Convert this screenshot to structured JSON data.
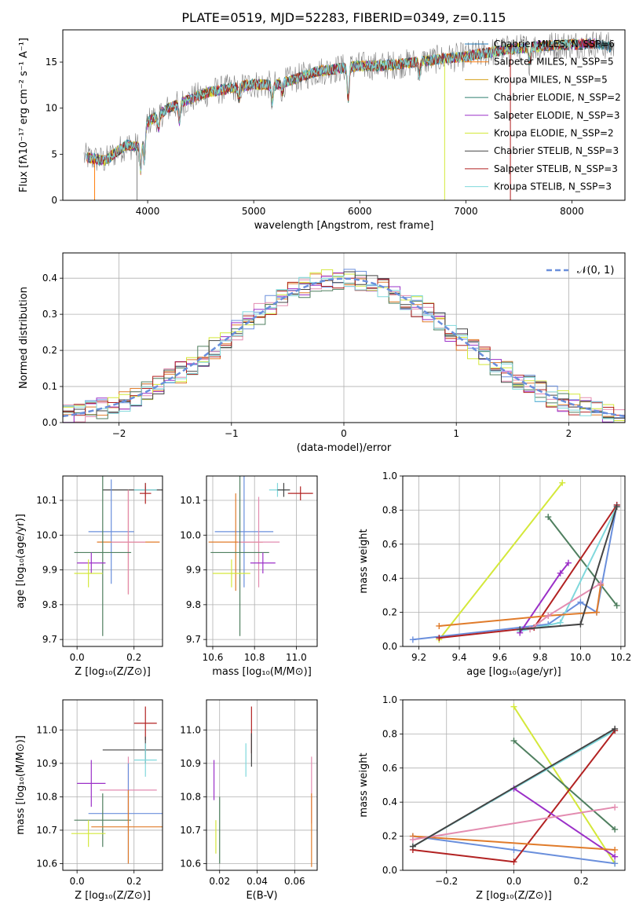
{
  "figure_title": "PLATE=0519, MJD=52283, FIBERID=0349, z=0.115",
  "colors": {
    "chabrier_miles": "#1f77b4",
    "salpeter_miles": "#ff7f0e",
    "kroupa_miles": "#d4a017",
    "chabrier_elodie": "#2f7f6f",
    "salpeter_elodie": "#9b30c8",
    "kroupa_elodie": "#d4e83a",
    "chabrier_stelib": "#444444",
    "salpeter_stelib": "#b22222",
    "kroupa_stelib": "#7fd8dc",
    "data": "#808080",
    "normal": "#6a8fdc",
    "s_lightblue": "#6a8fdc",
    "s_orange": "#e07b2a",
    "s_pink": "#e38cb0",
    "s_purple": "#9b30c8",
    "s_yellow": "#d4e83a",
    "s_green": "#4f7f5f",
    "s_dark": "#444444",
    "s_red": "#b22222",
    "s_cyan": "#7fd8dc"
  },
  "chart_data": [
    {
      "id": "spectrum",
      "type": "line",
      "title": "PLATE=0519, MJD=52283, FIBERID=0349, z=0.115",
      "xlabel": "wavelength [Angstrom, rest frame]",
      "ylabel": "Flux [fλ10⁻¹⁷ erg cm⁻² s⁻¹ A⁻¹]",
      "xlim": [
        3200,
        8500
      ],
      "ylim": [
        0,
        18.5
      ],
      "xticks": [
        4000,
        5000,
        6000,
        7000,
        8000
      ],
      "yticks": [
        0,
        5,
        10,
        15
      ],
      "grid": false,
      "legend_position": "top-right",
      "legend": [
        {
          "label": "Chabrier MILES, N_SSP=6",
          "color_key": "chabrier_miles"
        },
        {
          "label": "Salpeter MILES, N_SSP=5",
          "color_key": "salpeter_miles"
        },
        {
          "label": "Kroupa MILES, N_SSP=5",
          "color_key": "kroupa_miles"
        },
        {
          "label": "Chabrier ELODIE, N_SSP=2",
          "color_key": "chabrier_elodie"
        },
        {
          "label": "Salpeter ELODIE, N_SSP=3",
          "color_key": "salpeter_elodie"
        },
        {
          "label": "Kroupa ELODIE, N_SSP=2",
          "color_key": "kroupa_elodie"
        },
        {
          "label": "Chabrier STELIB, N_SSP=3",
          "color_key": "chabrier_stelib"
        },
        {
          "label": "Salpeter STELIB, N_SSP=3",
          "color_key": "salpeter_stelib"
        },
        {
          "label": "Kroupa STELIB, N_SSP=3",
          "color_key": "kroupa_stelib"
        }
      ],
      "continuum": [
        [
          3400,
          4.7
        ],
        [
          3600,
          4.3
        ],
        [
          3700,
          5.2
        ],
        [
          3800,
          6.0
        ],
        [
          3900,
          5.8
        ],
        [
          3950,
          6.5
        ],
        [
          4000,
          8.5
        ],
        [
          4200,
          10.0
        ],
        [
          4400,
          11.0
        ],
        [
          4600,
          11.8
        ],
        [
          4800,
          12.2
        ],
        [
          5000,
          12.6
        ],
        [
          5200,
          12.5
        ],
        [
          5400,
          13.2
        ],
        [
          5600,
          14.0
        ],
        [
          5800,
          14.3
        ],
        [
          6000,
          14.6
        ],
        [
          6200,
          14.6
        ],
        [
          6400,
          14.8
        ],
        [
          6600,
          15.1
        ],
        [
          6800,
          15.4
        ],
        [
          7000,
          15.6
        ],
        [
          7200,
          16.0
        ],
        [
          7400,
          16.4
        ],
        [
          7600,
          16.6
        ],
        [
          7800,
          16.8
        ],
        [
          8000,
          16.9
        ],
        [
          8200,
          17.0
        ],
        [
          8400,
          16.6
        ]
      ],
      "absorption_features": [
        [
          3934,
          3.0
        ],
        [
          3969,
          3.0
        ],
        [
          4102,
          1.5
        ],
        [
          4300,
          2.0
        ],
        [
          4861,
          1.5
        ],
        [
          5175,
          2.0
        ],
        [
          5270,
          1.0
        ],
        [
          5890,
          3.5
        ],
        [
          6563,
          1.5
        ],
        [
          7600,
          1.5
        ]
      ],
      "dropouts": [
        [
          3500,
          0
        ],
        [
          3900,
          0
        ],
        [
          6800,
          0
        ],
        [
          7420,
          0
        ]
      ]
    },
    {
      "id": "residuals",
      "type": "line",
      "xlabel": "(data-model)/error",
      "ylabel": "Normed distribution",
      "xlim": [
        -2.5,
        2.5
      ],
      "ylim": [
        0,
        0.47
      ],
      "xticks": [
        -2,
        -1,
        0,
        1,
        2
      ],
      "yticks": [
        0.0,
        0.1,
        0.2,
        0.3,
        0.4
      ],
      "grid": true,
      "legend_position": "top-right",
      "legend": [
        {
          "label": "𝒩(0, 1)",
          "color_key": "normal"
        }
      ],
      "bin_width": 0.1,
      "normal_mean": 0,
      "normal_sigma": 1
    },
    {
      "id": "age_vs_z",
      "type": "scatter",
      "xlabel": "Z [log₁₀(Z/Z⊙)]",
      "ylabel": "age  [log₁₀(age/yr)]",
      "xlim": [
        -0.05,
        0.3
      ],
      "ylim": [
        9.68,
        10.17
      ],
      "xticks": [
        0.0,
        0.2
      ],
      "yticks": [
        9.7,
        9.8,
        9.9,
        10.0,
        10.1
      ],
      "grid": true,
      "points": [
        {
          "c": "s_dark",
          "x": 0.24,
          "xe": 0.15,
          "y": 10.13,
          "ye": 0.01
        },
        {
          "c": "s_cyan",
          "x": 0.24,
          "xe": 0.04,
          "y": 10.13,
          "ye": 0.02
        },
        {
          "c": "s_red",
          "x": 0.24,
          "xe": 0.02,
          "y": 10.12,
          "ye": 0.03
        },
        {
          "c": "s_lightblue",
          "x": 0.12,
          "xe": 0.08,
          "y": 10.01,
          "ye": 0.15
        },
        {
          "c": "s_orange",
          "x": 0.18,
          "xe": 0.11,
          "y": 9.98,
          "ye": 0.15
        },
        {
          "c": "s_pink",
          "x": 0.18,
          "xe": 0.06,
          "y": 9.98,
          "ye": 0.15
        },
        {
          "c": "s_green",
          "x": 0.09,
          "xe": 0.1,
          "y": 9.95,
          "ye": 0.24
        },
        {
          "c": "s_purple",
          "x": 0.05,
          "xe": 0.05,
          "y": 9.92,
          "ye": 0.03
        },
        {
          "c": "s_yellow",
          "x": 0.04,
          "xe": 0.05,
          "y": 9.89,
          "ye": 0.04
        }
      ]
    },
    {
      "id": "age_vs_mass",
      "type": "scatter",
      "xlabel": "mass [log₁₀(M/M⊙)]",
      "ylabel": "",
      "xlim": [
        10.57,
        11.1
      ],
      "ylim": [
        9.68,
        10.17
      ],
      "xticks": [
        10.6,
        10.8,
        11.0
      ],
      "yticks": [
        9.7,
        9.8,
        9.9,
        10.0,
        10.1
      ],
      "grid": true,
      "points": [
        {
          "c": "s_cyan",
          "x": 10.91,
          "xe": 0.04,
          "y": 10.13,
          "ye": 0.02
        },
        {
          "c": "s_dark",
          "x": 10.94,
          "xe": 0.03,
          "y": 10.13,
          "ye": 0.02
        },
        {
          "c": "s_red",
          "x": 11.02,
          "xe": 0.06,
          "y": 10.12,
          "ye": 0.02
        },
        {
          "c": "s_lightblue",
          "x": 10.75,
          "xe": 0.14,
          "y": 10.01,
          "ye": 0.16
        },
        {
          "c": "s_orange",
          "x": 10.71,
          "xe": 0.13,
          "y": 9.98,
          "ye": 0.14
        },
        {
          "c": "s_pink",
          "x": 10.82,
          "xe": 0.1,
          "y": 9.98,
          "ye": 0.13
        },
        {
          "c": "s_green",
          "x": 10.73,
          "xe": 0.14,
          "y": 9.95,
          "ye": 0.24
        },
        {
          "c": "s_purple",
          "x": 10.84,
          "xe": 0.06,
          "y": 9.92,
          "ye": 0.03
        },
        {
          "c": "s_yellow",
          "x": 10.69,
          "xe": 0.09,
          "y": 9.89,
          "ye": 0.04
        }
      ]
    },
    {
      "id": "weight_vs_age",
      "type": "line",
      "xlabel": "age  [log₁₀(age/yr)]",
      "ylabel": "mass weight",
      "xlim": [
        9.12,
        10.22
      ],
      "ylim": [
        0,
        1.0
      ],
      "xticks": [
        9.2,
        9.4,
        9.6,
        9.8,
        10.0,
        10.2
      ],
      "yticks": [
        0.0,
        0.2,
        0.4,
        0.6,
        0.8,
        1.0
      ],
      "grid": true,
      "series": [
        {
          "c": "s_yellow",
          "points": [
            [
              9.3,
              0.04
            ],
            [
              9.91,
              0.96
            ]
          ]
        },
        {
          "c": "s_green",
          "points": [
            [
              9.84,
              0.76
            ],
            [
              10.18,
              0.24
            ]
          ]
        },
        {
          "c": "s_lightblue",
          "points": [
            [
              9.17,
              0.04
            ],
            [
              9.84,
              0.13
            ],
            [
              10.0,
              0.26
            ],
            [
              10.08,
              0.2
            ],
            [
              10.18,
              0.83
            ]
          ]
        },
        {
          "c": "s_red",
          "points": [
            [
              9.3,
              0.05
            ],
            [
              9.77,
              0.11
            ],
            [
              10.18,
              0.83
            ]
          ]
        },
        {
          "c": "s_cyan",
          "points": [
            [
              9.7,
              0.09
            ],
            [
              9.9,
              0.14
            ],
            [
              10.18,
              0.82
            ]
          ]
        },
        {
          "c": "s_purple",
          "points": [
            [
              9.7,
              0.08
            ],
            [
              9.9,
              0.43
            ],
            [
              9.94,
              0.49
            ]
          ]
        },
        {
          "c": "s_orange",
          "points": [
            [
              9.3,
              0.12
            ],
            [
              9.84,
              0.18
            ],
            [
              10.08,
              0.2
            ],
            [
              10.1,
              0.36
            ]
          ]
        },
        {
          "c": "s_pink",
          "points": [
            [
              9.75,
              0.1
            ],
            [
              9.84,
              0.18
            ],
            [
              10.1,
              0.37
            ]
          ]
        },
        {
          "c": "s_dark",
          "points": [
            [
              9.7,
              0.1
            ],
            [
              10.0,
              0.13
            ],
            [
              10.18,
              0.82
            ]
          ]
        }
      ]
    },
    {
      "id": "mass_vs_z",
      "type": "scatter",
      "xlabel": "Z [log₁₀(Z/Z⊙)]",
      "ylabel": "mass [log₁₀(M/M⊙)]",
      "xlim": [
        -0.05,
        0.3
      ],
      "ylim": [
        10.58,
        11.09
      ],
      "xticks": [
        0.0,
        0.2
      ],
      "yticks": [
        10.6,
        10.7,
        10.8,
        10.9,
        11.0
      ],
      "grid": true,
      "points": [
        {
          "c": "s_red",
          "x": 0.24,
          "xe": 0.04,
          "y": 11.02,
          "ye": 0.05
        },
        {
          "c": "s_dark",
          "x": 0.24,
          "xe": 0.15,
          "y": 10.94,
          "ye": 0.04
        },
        {
          "c": "s_cyan",
          "x": 0.24,
          "xe": 0.04,
          "y": 10.91,
          "ye": 0.05
        },
        {
          "c": "s_purple",
          "x": 0.05,
          "xe": 0.05,
          "y": 10.84,
          "ye": 0.07
        },
        {
          "c": "s_pink",
          "x": 0.18,
          "xe": 0.1,
          "y": 10.82,
          "ye": 0.1
        },
        {
          "c": "s_lightblue",
          "x": 0.18,
          "xe": 0.14,
          "y": 10.75,
          "ye": 0.15
        },
        {
          "c": "s_green",
          "x": 0.09,
          "xe": 0.1,
          "y": 10.73,
          "ye": 0.08
        },
        {
          "c": "s_orange",
          "x": 0.18,
          "xe": 0.13,
          "y": 10.71,
          "ye": 0.11
        },
        {
          "c": "s_yellow",
          "x": 0.04,
          "xe": 0.06,
          "y": 10.69,
          "ye": 0.04
        }
      ]
    },
    {
      "id": "mass_vs_ebv",
      "type": "scatter",
      "xlabel": "E(B-V)",
      "ylabel": "",
      "xlim": [
        0.013,
        0.072
      ],
      "ylim": [
        10.58,
        11.09
      ],
      "xticks": [
        0.02,
        0.04,
        0.06
      ],
      "yticks": [
        10.6,
        10.7,
        10.8,
        10.9,
        11.0
      ],
      "grid": true,
      "points": [
        {
          "c": "s_red",
          "x": 0.037,
          "xe": 0.0,
          "y": 11.0,
          "ye": 0.07
        },
        {
          "c": "s_dark",
          "x": 0.037,
          "xe": 0.0,
          "y": 10.94,
          "ye": 0.05
        },
        {
          "c": "s_cyan",
          "x": 0.034,
          "xe": 0.0,
          "y": 10.91,
          "ye": 0.05
        },
        {
          "c": "s_purple",
          "x": 0.017,
          "xe": 0.0,
          "y": 10.85,
          "ye": 0.06
        },
        {
          "c": "s_pink",
          "x": 0.069,
          "xe": 0.0,
          "y": 10.82,
          "ye": 0.1
        },
        {
          "c": "s_yellow",
          "x": 0.018,
          "xe": 0.0,
          "y": 10.68,
          "ye": 0.05
        },
        {
          "c": "s_green",
          "x": 0.02,
          "xe": 0.0,
          "y": 10.7,
          "ye": 0.1
        },
        {
          "c": "s_orange",
          "x": 0.069,
          "xe": 0.0,
          "y": 10.7,
          "ye": 0.11
        }
      ]
    },
    {
      "id": "weight_vs_z",
      "type": "line",
      "xlabel": "Z [log₁₀(Z/Z⊙)]",
      "ylabel": "mass weight",
      "xlim": [
        -0.33,
        0.33
      ],
      "ylim": [
        0,
        1.0
      ],
      "xticks": [
        -0.2,
        0.0,
        0.2
      ],
      "yticks": [
        0.0,
        0.2,
        0.4,
        0.6,
        0.8,
        1.0
      ],
      "grid": true,
      "series": [
        {
          "c": "s_yellow",
          "points": [
            [
              0.0,
              0.96
            ],
            [
              0.3,
              0.04
            ]
          ]
        },
        {
          "c": "s_green",
          "points": [
            [
              0.0,
              0.76
            ],
            [
              0.3,
              0.24
            ]
          ]
        },
        {
          "c": "s_cyan",
          "points": [
            [
              -0.3,
              0.14
            ],
            [
              0.0,
              0.48
            ],
            [
              0.3,
              0.82
            ]
          ]
        },
        {
          "c": "s_lightblue",
          "points": [
            [
              -0.3,
              0.2
            ],
            [
              0.0,
              0.12
            ],
            [
              0.3,
              0.04
            ]
          ]
        },
        {
          "c": "s_red",
          "points": [
            [
              -0.3,
              0.12
            ],
            [
              0.0,
              0.05
            ],
            [
              0.3,
              0.82
            ]
          ]
        },
        {
          "c": "s_purple",
          "points": [
            [
              0.0,
              0.48
            ],
            [
              0.3,
              0.08
            ]
          ]
        },
        {
          "c": "s_orange",
          "points": [
            [
              -0.3,
              0.2
            ],
            [
              0.3,
              0.12
            ]
          ]
        },
        {
          "c": "s_pink",
          "points": [
            [
              -0.3,
              0.18
            ],
            [
              0.3,
              0.37
            ]
          ]
        },
        {
          "c": "s_dark",
          "points": [
            [
              -0.3,
              0.14
            ],
            [
              0.3,
              0.83
            ]
          ]
        }
      ]
    }
  ]
}
